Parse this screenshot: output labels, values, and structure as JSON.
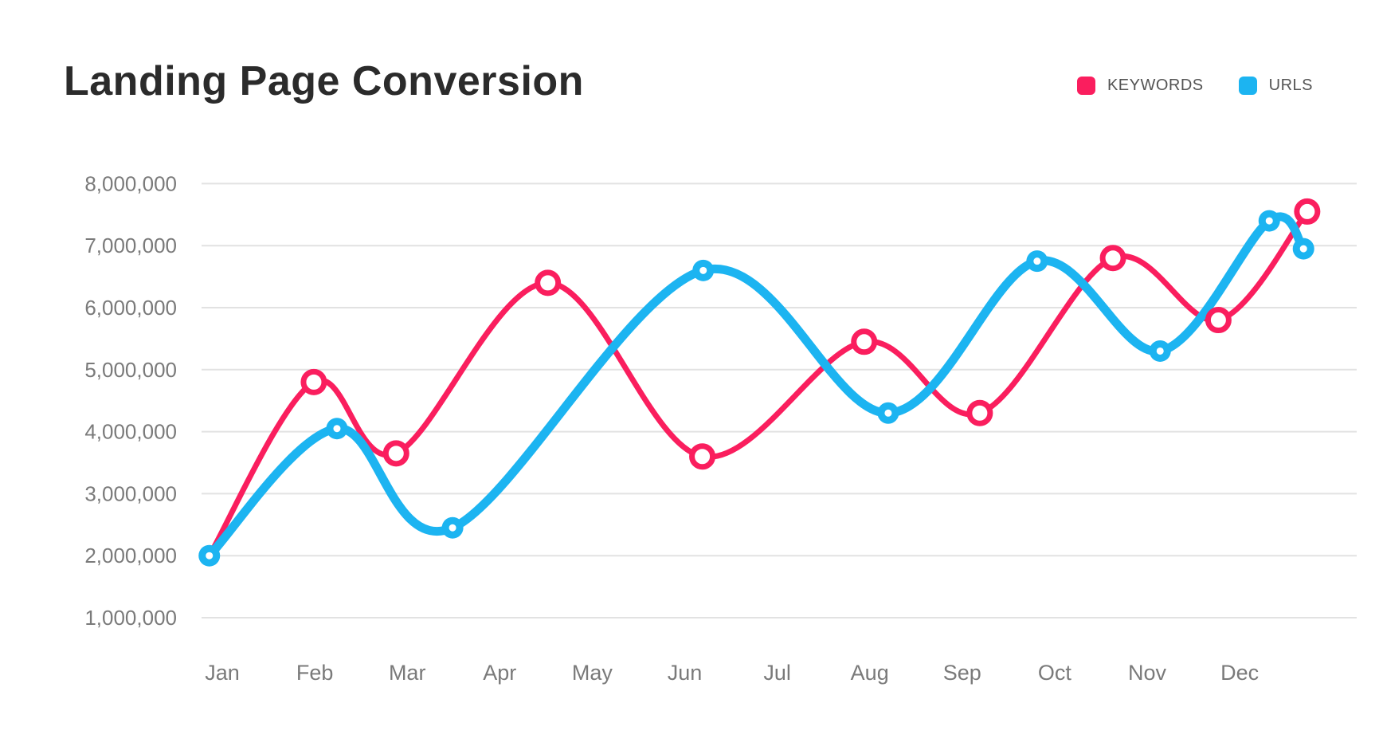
{
  "header": {
    "title": "Landing Page Conversion"
  },
  "legend": {
    "items": [
      {
        "label": "KEYWORDS",
        "color": "#FA1E5E"
      },
      {
        "label": "URLS",
        "color": "#1CB4F1"
      }
    ]
  },
  "chart_data": {
    "type": "line",
    "title": "Landing Page Conversion",
    "categories": [
      "Jan",
      "Feb",
      "Mar",
      "Apr",
      "May",
      "Jun",
      "Jul",
      "Aug",
      "Sep",
      "Oct",
      "Nov",
      "Dec"
    ],
    "y_axis": {
      "min": 1000000,
      "max": 8000000,
      "tick_step": 1000000,
      "tick_labels": [
        "1,000,000",
        "2,000,000",
        "3,000,000",
        "4,000,000",
        "5,000,000",
        "6,000,000",
        "7,000,000",
        "8,000,000"
      ],
      "gridlines": "horizontal"
    },
    "legend_position": "top-right",
    "x_unit_note": "month is a fractional 0-based position along the Jan-Dec axis as depicted",
    "series": [
      {
        "name": "KEYWORDS",
        "color": "#FA1E5E",
        "marker": "open-circle",
        "line_width": 7,
        "points": [
          {
            "month": -0.14,
            "value": 2000000,
            "marker": false
          },
          {
            "month": 0.99,
            "value": 4800000
          },
          {
            "month": 1.88,
            "value": 3650000
          },
          {
            "month": 3.52,
            "value": 6400000
          },
          {
            "month": 5.19,
            "value": 3600000
          },
          {
            "month": 6.94,
            "value": 5450000
          },
          {
            "month": 8.19,
            "value": 4300000
          },
          {
            "month": 9.63,
            "value": 6800000
          },
          {
            "month": 10.77,
            "value": 5800000
          },
          {
            "month": 11.73,
            "value": 7550000
          }
        ]
      },
      {
        "name": "URLS",
        "color": "#1CB4F1",
        "marker": "filled-circle",
        "line_width": 11,
        "points": [
          {
            "month": -0.14,
            "value": 2000000
          },
          {
            "month": 1.24,
            "value": 4050000
          },
          {
            "month": 2.49,
            "value": 2450000
          },
          {
            "month": 5.2,
            "value": 6600000
          },
          {
            "month": 7.2,
            "value": 4300000
          },
          {
            "month": 8.81,
            "value": 6750000
          },
          {
            "month": 10.14,
            "value": 5300000
          },
          {
            "month": 11.32,
            "value": 7400000
          },
          {
            "month": 11.69,
            "value": 6950000
          }
        ]
      }
    ],
    "style": {
      "grid_color": "#E2E2E2",
      "axis_label_color": "#7A7A7A",
      "title_color": "#2B2B2B",
      "background": "#FFFFFF"
    }
  }
}
